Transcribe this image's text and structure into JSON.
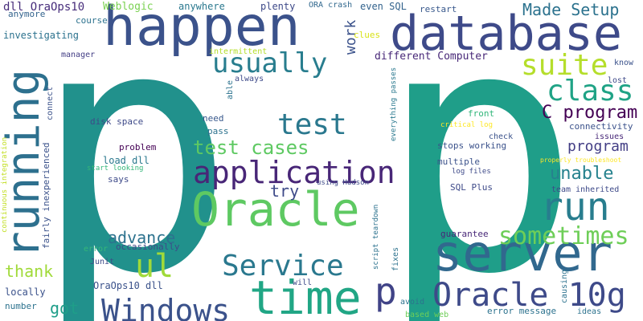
{
  "words": [
    {
      "text": "p",
      "color": "#21918c"
    },
    {
      "text": "p",
      "color": "#1f9e89"
    },
    {
      "text": "database",
      "color": "#3e4a89"
    },
    {
      "text": "happen",
      "color": "#3b528b"
    },
    {
      "text": "running",
      "color": "#2d708e"
    },
    {
      "text": "server",
      "color": "#31688e"
    },
    {
      "text": "Oracle",
      "color": "#5ec962"
    },
    {
      "text": "time",
      "color": "#21a685"
    },
    {
      "text": "application",
      "color": "#482677"
    },
    {
      "text": "Windows",
      "color": "#3b528b"
    },
    {
      "text": "Oracle 10g",
      "color": "#3e4a89"
    },
    {
      "text": "run",
      "color": "#287d8e"
    },
    {
      "text": "Service",
      "color": "#2a788e"
    },
    {
      "text": "usually",
      "color": "#287d8e"
    },
    {
      "text": "class",
      "color": "#20a386"
    },
    {
      "text": "suite",
      "color": "#b5de2b"
    },
    {
      "text": "test",
      "color": "#2a788e"
    },
    {
      "text": "sometimes",
      "color": "#6ece58"
    },
    {
      "text": "ul",
      "color": "#a0da39"
    },
    {
      "text": "p",
      "color": "#404387"
    },
    {
      "text": "test cases",
      "color": "#5ec962"
    },
    {
      "text": "C program",
      "color": "#440154"
    },
    {
      "text": "program",
      "color": "#433e85"
    },
    {
      "text": "unable",
      "color": "#26828e"
    },
    {
      "text": "Made Setup",
      "color": "#2c728e"
    },
    {
      "text": "try",
      "color": "#3e4a89"
    },
    {
      "text": "advance",
      "color": "#2c728e"
    },
    {
      "text": "thank",
      "color": "#a0da39"
    },
    {
      "text": "got",
      "color": "#1f9e89"
    },
    {
      "text": "work",
      "color": "#3b528b"
    },
    {
      "text": "different Computer",
      "color": "#482878"
    },
    {
      "text": "dll OraOps10",
      "color": "#472d7b"
    },
    {
      "text": "Weblogic",
      "color": "#7ad151"
    },
    {
      "text": "anywhere",
      "color": "#2a788e"
    },
    {
      "text": "plenty",
      "color": "#3e4a89"
    },
    {
      "text": "ORA crash",
      "color": "#31688e"
    },
    {
      "text": "even SQL",
      "color": "#33638d"
    },
    {
      "text": "restart",
      "color": "#38588c"
    },
    {
      "text": "anymore",
      "color": "#33638d"
    },
    {
      "text": "course",
      "color": "#2c728e"
    },
    {
      "text": "investigating",
      "color": "#2c728e"
    },
    {
      "text": "clues",
      "color": "#d8e219"
    },
    {
      "text": "manager",
      "color": "#433e85"
    },
    {
      "text": "intermittent",
      "color": "#b5de2b"
    },
    {
      "text": "always",
      "color": "#3e4a89"
    },
    {
      "text": "able",
      "color": "#2c728e"
    },
    {
      "text": "everything passes",
      "color": "#2a788e"
    },
    {
      "text": "know",
      "color": "#3b528b"
    },
    {
      "text": "lost",
      "color": "#3e4a89"
    },
    {
      "text": "connect",
      "color": "#3b528b"
    },
    {
      "text": "continuous integration",
      "color": "#c2df23"
    },
    {
      "text": "disk space",
      "color": "#3e4a89"
    },
    {
      "text": "need",
      "color": "#38588c"
    },
    {
      "text": "pass",
      "color": "#2c728e"
    },
    {
      "text": "problem",
      "color": "#440154"
    },
    {
      "text": "load dll",
      "color": "#2a788e"
    },
    {
      "text": "fairly inexperienced",
      "color": "#3b528b"
    },
    {
      "text": "start looking",
      "color": "#35b779"
    },
    {
      "text": "says",
      "color": "#3e4a89"
    },
    {
      "text": "front",
      "color": "#32b67a"
    },
    {
      "text": "critical log",
      "color": "#fde725"
    },
    {
      "text": "check",
      "color": "#3b528b"
    },
    {
      "text": "stops working",
      "color": "#3b528b"
    },
    {
      "text": "connectivity",
      "color": "#3b528b"
    },
    {
      "text": "issues",
      "color": "#482878"
    },
    {
      "text": "multiple",
      "color": "#3b528b"
    },
    {
      "text": "log files",
      "color": "#3e4a89"
    },
    {
      "text": "properly troubleshoot",
      "color": "#fde725"
    },
    {
      "text": "team inherited",
      "color": "#3e4a89"
    },
    {
      "text": "SQL Plus",
      "color": "#3e4a89"
    },
    {
      "text": "using Hudson",
      "color": "#3e4a89"
    },
    {
      "text": "script teardown",
      "color": "#2c728e"
    },
    {
      "text": "occasionally",
      "color": "#3e4a89"
    },
    {
      "text": "error",
      "color": "#35b779"
    },
    {
      "text": "Junit",
      "color": "#3e4a89"
    },
    {
      "text": "guarantee",
      "color": "#482878"
    },
    {
      "text": "fixes",
      "color": "#2c728e"
    },
    {
      "text": "causing",
      "color": "#2c728e"
    },
    {
      "text": "OraOps10 dll",
      "color": "#3b528b"
    },
    {
      "text": "will",
      "color": "#3e4a89"
    },
    {
      "text": "locally",
      "color": "#3b528b"
    },
    {
      "text": "number",
      "color": "#2c728e"
    },
    {
      "text": "avoid",
      "color": "#2c728e"
    },
    {
      "text": "error message",
      "color": "#2c728e"
    },
    {
      "text": "ideas",
      "color": "#2c728e"
    },
    {
      "text": "based web",
      "color": "#6ece58"
    }
  ]
}
